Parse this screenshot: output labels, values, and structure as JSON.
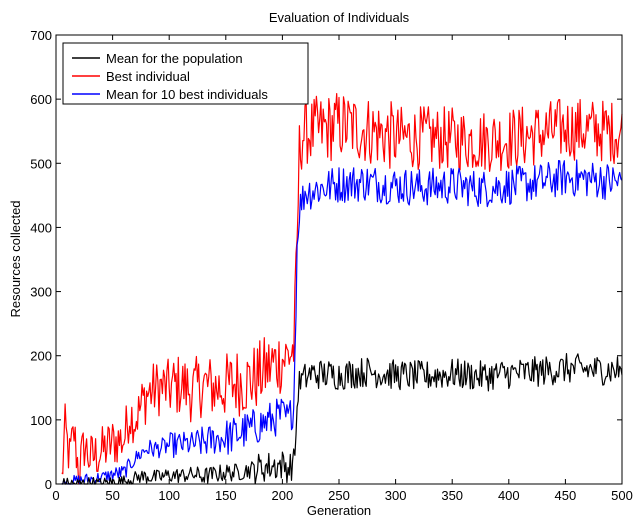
{
  "chart_data": {
    "type": "line",
    "title": "Evaluation of Individuals",
    "xlabel": "Generation",
    "ylabel": "Resources collected",
    "xlim": [
      0,
      500
    ],
    "ylim": [
      0,
      700
    ],
    "xticks": [
      0,
      50,
      100,
      150,
      200,
      250,
      300,
      350,
      400,
      450,
      500
    ],
    "yticks": [
      0,
      100,
      200,
      300,
      400,
      500,
      600,
      700
    ],
    "grid": false,
    "legend_position": "top-left",
    "series": [
      {
        "name": "Mean for the population",
        "color": "#000000",
        "keypoints": [
          [
            5,
            0
          ],
          [
            20,
            0
          ],
          [
            30,
            2
          ],
          [
            40,
            0
          ],
          [
            50,
            3
          ],
          [
            60,
            4
          ],
          [
            70,
            10
          ],
          [
            80,
            12
          ],
          [
            90,
            10
          ],
          [
            100,
            14
          ],
          [
            110,
            13
          ],
          [
            120,
            15
          ],
          [
            130,
            12
          ],
          [
            140,
            15
          ],
          [
            150,
            18
          ],
          [
            160,
            18
          ],
          [
            170,
            22
          ],
          [
            180,
            25
          ],
          [
            190,
            28
          ],
          [
            200,
            30
          ],
          [
            205,
            25
          ],
          [
            210,
            32
          ],
          [
            212,
            80
          ],
          [
            214,
            150
          ],
          [
            216,
            160
          ],
          [
            225,
            172
          ],
          [
            250,
            170
          ],
          [
            275,
            175
          ],
          [
            300,
            170
          ],
          [
            325,
            168
          ],
          [
            350,
            172
          ],
          [
            375,
            168
          ],
          [
            400,
            172
          ],
          [
            425,
            175
          ],
          [
            450,
            180
          ],
          [
            475,
            178
          ],
          [
            500,
            178
          ]
        ],
        "noise": [
          10,
          10,
          10,
          12,
          12,
          14,
          14,
          24,
          24,
          24,
          24,
          24,
          24,
          24,
          24,
          24,
          24,
          24,
          24,
          24,
          24
        ]
      },
      {
        "name": "Best individual",
        "color": "#ff0000",
        "keypoints": [
          [
            5,
            5
          ],
          [
            8,
            85
          ],
          [
            12,
            40
          ],
          [
            16,
            80
          ],
          [
            20,
            20
          ],
          [
            25,
            60
          ],
          [
            30,
            40
          ],
          [
            40,
            50
          ],
          [
            50,
            65
          ],
          [
            60,
            70
          ],
          [
            65,
            110
          ],
          [
            70,
            100
          ],
          [
            80,
            140
          ],
          [
            90,
            150
          ],
          [
            100,
            150
          ],
          [
            110,
            155
          ],
          [
            120,
            145
          ],
          [
            130,
            155
          ],
          [
            140,
            150
          ],
          [
            150,
            150
          ],
          [
            160,
            160
          ],
          [
            170,
            160
          ],
          [
            180,
            170
          ],
          [
            190,
            185
          ],
          [
            200,
            195
          ],
          [
            205,
            200
          ],
          [
            210,
            210
          ],
          [
            213,
            370
          ],
          [
            215,
            520
          ],
          [
            218,
            545
          ],
          [
            225,
            548
          ],
          [
            250,
            560
          ],
          [
            275,
            552
          ],
          [
            300,
            540
          ],
          [
            325,
            540
          ],
          [
            350,
            538
          ],
          [
            375,
            535
          ],
          [
            400,
            538
          ],
          [
            425,
            545
          ],
          [
            450,
            555
          ],
          [
            475,
            552
          ],
          [
            500,
            548
          ]
        ],
        "noise": [
          40,
          40,
          40,
          45,
          50,
          50,
          55,
          55,
          50,
          55,
          55,
          55,
          50,
          50,
          50,
          50,
          50,
          50,
          50,
          50,
          50
        ]
      },
      {
        "name": "Mean for 10 best individuals",
        "color": "#0000ff",
        "keypoints": [
          [
            5,
            0
          ],
          [
            20,
            5
          ],
          [
            30,
            8
          ],
          [
            40,
            10
          ],
          [
            50,
            15
          ],
          [
            60,
            18
          ],
          [
            70,
            40
          ],
          [
            80,
            55
          ],
          [
            90,
            55
          ],
          [
            100,
            60
          ],
          [
            110,
            62
          ],
          [
            120,
            62
          ],
          [
            130,
            65
          ],
          [
            140,
            70
          ],
          [
            150,
            72
          ],
          [
            160,
            78
          ],
          [
            170,
            85
          ],
          [
            180,
            92
          ],
          [
            190,
            100
          ],
          [
            200,
            108
          ],
          [
            205,
            100
          ],
          [
            210,
            120
          ],
          [
            213,
            370
          ],
          [
            215,
            430
          ],
          [
            220,
            455
          ],
          [
            250,
            468
          ],
          [
            275,
            470
          ],
          [
            300,
            465
          ],
          [
            325,
            462
          ],
          [
            350,
            466
          ],
          [
            375,
            460
          ],
          [
            400,
            465
          ],
          [
            425,
            470
          ],
          [
            450,
            478
          ],
          [
            475,
            475
          ],
          [
            500,
            470
          ]
        ],
        "noise": [
          10,
          10,
          12,
          15,
          20,
          25,
          30,
          30,
          28,
          30,
          30,
          30,
          30,
          30,
          30,
          30,
          30,
          30,
          30,
          30,
          30
        ]
      }
    ]
  }
}
